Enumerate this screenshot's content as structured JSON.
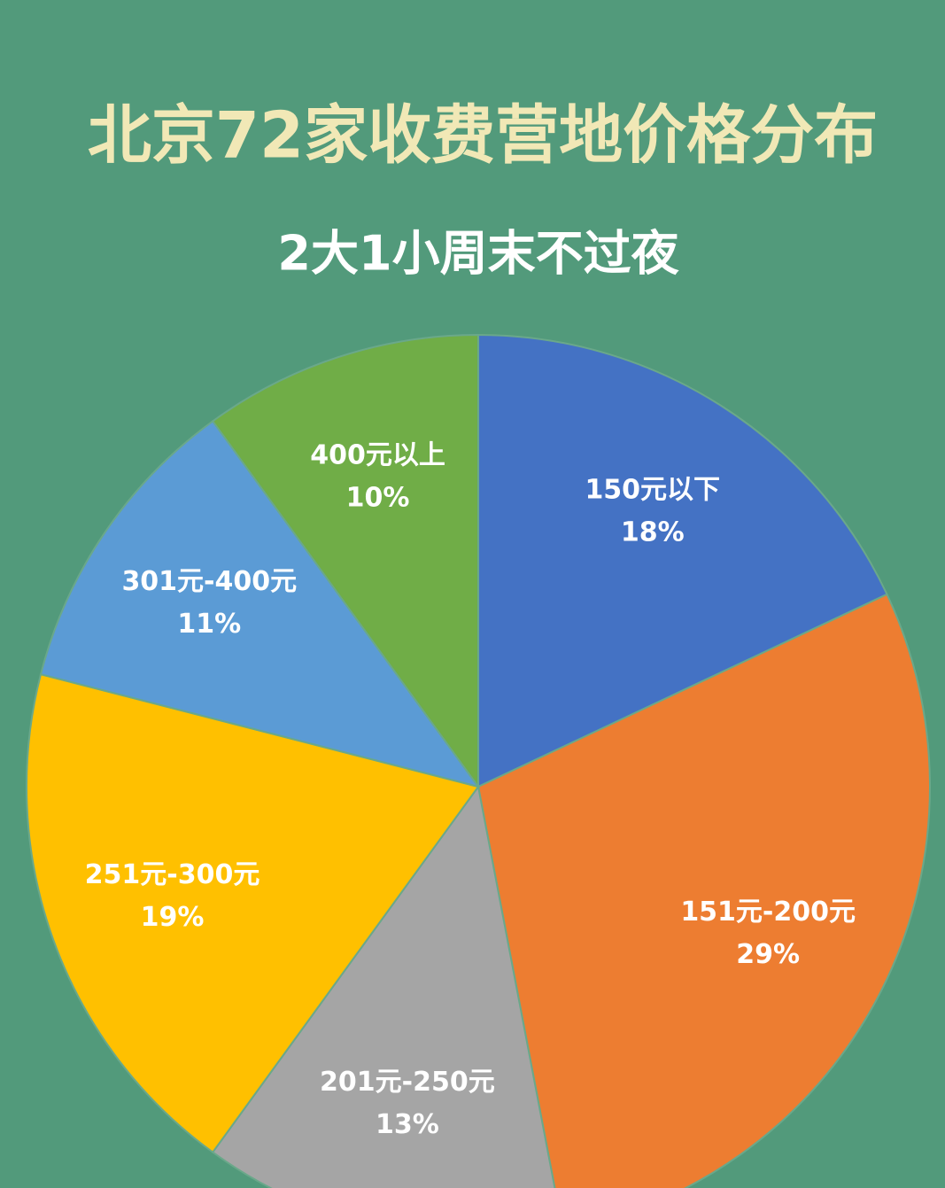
{
  "chart_data": {
    "type": "pie",
    "title": "北京72家收费营地价格分布",
    "subtitle": "2大1小周末不过夜",
    "categories": [
      "150元以下",
      "151元-200元",
      "201元-250元",
      "251元-300元",
      "301元-400元",
      "400元以上"
    ],
    "values": [
      18,
      29,
      13,
      19,
      11,
      10
    ],
    "value_labels": [
      "18%",
      "29%",
      "13%",
      "19%",
      "11%",
      "10%"
    ],
    "colors": [
      "#4472c4",
      "#ed7d31",
      "#a5a5a5",
      "#ffc000",
      "#5b9bd5",
      "#70ad47"
    ]
  }
}
